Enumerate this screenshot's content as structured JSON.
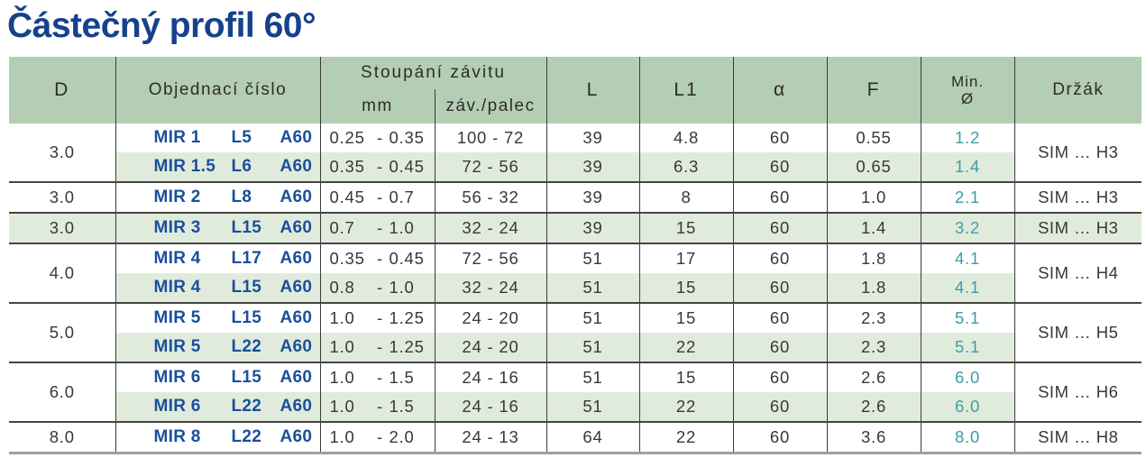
{
  "page_title": "Částečný profil 60°",
  "colors": {
    "title_blue": "#15418e",
    "code_blue": "#1b4f9c",
    "header_green": "#b4ceb4",
    "stripe_green": "#e0ebdc",
    "min_teal": "#3e9da5",
    "text_gray": "#383838"
  },
  "table": {
    "range_sep": "-",
    "headers": {
      "d": "D",
      "order_no": "Objednací číslo",
      "pitch_group": "Stoupání závitu",
      "pitch_mm": "mm",
      "pitch_tpi": "záv./palec",
      "l": "L",
      "l1": "L1",
      "alpha": "α",
      "f": "F",
      "min_line1": "Min.",
      "min_line2": "Ø",
      "holder": "Držák"
    },
    "groups": [
      {
        "d": "3.0",
        "holder": "SIM … H3",
        "rows": [
          {
            "code": [
              "MIR 1",
              "L5",
              "A60"
            ],
            "mm": {
              "from": "0.25",
              "to": "0.35"
            },
            "tpi": "100 - 72",
            "l": "39",
            "l1": "4.8",
            "alpha": "60",
            "f": "0.55",
            "min": "1.2"
          },
          {
            "code": [
              "MIR 1.5",
              "L6",
              "A60"
            ],
            "mm": {
              "from": "0.35",
              "to": "0.45"
            },
            "tpi": "72 - 56",
            "l": "39",
            "l1": "6.3",
            "alpha": "60",
            "f": "0.65",
            "min": "1.4"
          }
        ]
      },
      {
        "d": "3.0",
        "holder": "SIM … H3",
        "rows": [
          {
            "code": [
              "MIR 2",
              "L8",
              "A60"
            ],
            "mm": {
              "from": "0.45",
              "to": "0.7"
            },
            "tpi": "56 - 32",
            "l": "39",
            "l1": "8",
            "alpha": "60",
            "f": "1.0",
            "min": "2.1"
          }
        ]
      },
      {
        "d": "3.0",
        "holder": "SIM … H3",
        "rows": [
          {
            "code": [
              "MIR 3",
              "L15",
              "A60"
            ],
            "mm": {
              "from": "0.7",
              "to": "1.0"
            },
            "tpi": "32 - 24",
            "l": "39",
            "l1": "15",
            "alpha": "60",
            "f": "1.4",
            "min": "3.2"
          }
        ]
      },
      {
        "d": "4.0",
        "holder": "SIM … H4",
        "rows": [
          {
            "code": [
              "MIR 4",
              "L17",
              "A60"
            ],
            "mm": {
              "from": "0.35",
              "to": "0.45"
            },
            "tpi": "72 - 56",
            "l": "51",
            "l1": "17",
            "alpha": "60",
            "f": "1.8",
            "min": "4.1"
          },
          {
            "code": [
              "MIR 4",
              "L15",
              "A60"
            ],
            "mm": {
              "from": "0.8",
              "to": "1.0"
            },
            "tpi": "32 - 24",
            "l": "51",
            "l1": "15",
            "alpha": "60",
            "f": "1.8",
            "min": "4.1"
          }
        ]
      },
      {
        "d": "5.0",
        "holder": "SIM … H5",
        "rows": [
          {
            "code": [
              "MIR 5",
              "L15",
              "A60"
            ],
            "mm": {
              "from": "1.0",
              "to": "1.25"
            },
            "tpi": "24 - 20",
            "l": "51",
            "l1": "15",
            "alpha": "60",
            "f": "2.3",
            "min": "5.1"
          },
          {
            "code": [
              "MIR 5",
              "L22",
              "A60"
            ],
            "mm": {
              "from": "1.0",
              "to": "1.25"
            },
            "tpi": "24 - 20",
            "l": "51",
            "l1": "22",
            "alpha": "60",
            "f": "2.3",
            "min": "5.1"
          }
        ]
      },
      {
        "d": "6.0",
        "holder": "SIM … H6",
        "rows": [
          {
            "code": [
              "MIR 6",
              "L15",
              "A60"
            ],
            "mm": {
              "from": "1.0",
              "to": "1.5"
            },
            "tpi": "24 - 16",
            "l": "51",
            "l1": "15",
            "alpha": "60",
            "f": "2.6",
            "min": "6.0"
          },
          {
            "code": [
              "MIR 6",
              "L22",
              "A60"
            ],
            "mm": {
              "from": "1.0",
              "to": "1.5"
            },
            "tpi": "24 - 16",
            "l": "51",
            "l1": "22",
            "alpha": "60",
            "f": "2.6",
            "min": "6.0"
          }
        ]
      },
      {
        "d": "8.0",
        "holder": "SIM … H8",
        "rows": [
          {
            "code": [
              "MIR 8",
              "L22",
              "A60"
            ],
            "mm": {
              "from": "1.0",
              "to": "2.0"
            },
            "tpi": "24 - 13",
            "l": "64",
            "l1": "22",
            "alpha": "60",
            "f": "3.6",
            "min": "8.0"
          }
        ]
      }
    ]
  }
}
